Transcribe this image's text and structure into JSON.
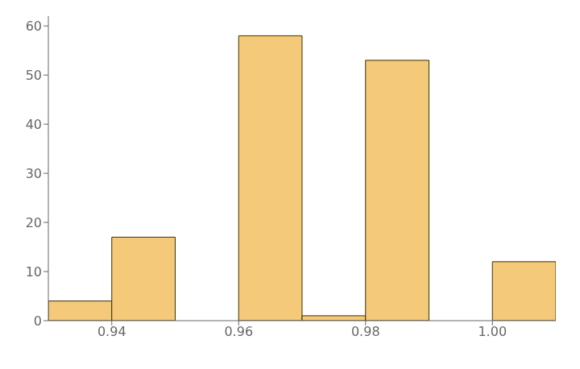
{
  "chart_data": {
    "type": "histogram",
    "bins": [
      0.93,
      0.94,
      0.95,
      0.96,
      0.97,
      0.98,
      0.99,
      1.0,
      1.01
    ],
    "values": [
      4,
      17,
      0,
      58,
      1,
      53,
      0,
      12
    ],
    "color": "#F5C97A",
    "xlim": [
      0.93,
      1.01
    ],
    "ylim": [
      0,
      62
    ],
    "xticks": [
      0.94,
      0.96,
      0.98,
      {
        "value": 1.0,
        "label": "1.00"
      }
    ],
    "yticks": [
      0,
      10,
      20,
      30,
      40,
      50,
      60
    ],
    "grid": false
  }
}
